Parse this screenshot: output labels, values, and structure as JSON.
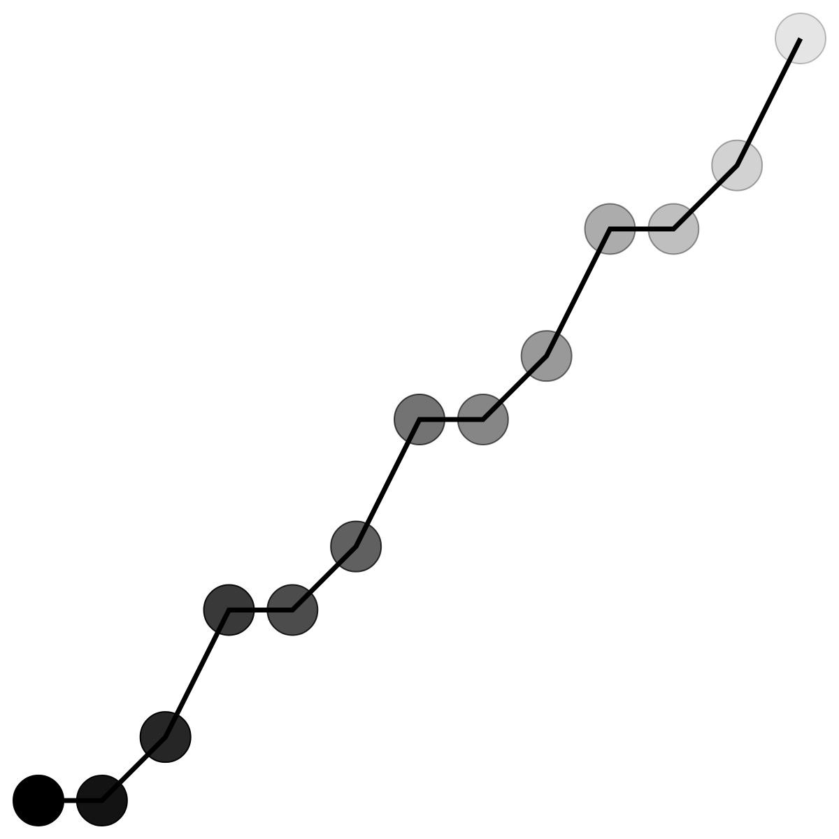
{
  "chart_data": {
    "type": "line",
    "title": "",
    "xlabel": "",
    "ylabel": "",
    "grid": false,
    "legend": "none",
    "line_color": "#000000",
    "marker_fill": "#000000",
    "marker_opacity_range": [
      1.0,
      0.1
    ],
    "xlim": [
      0,
      12
    ],
    "ylim": [
      0,
      12
    ],
    "series": [
      {
        "x": [
          0,
          1,
          2,
          3,
          4,
          5,
          6,
          7,
          8,
          9,
          10,
          11,
          12
        ],
        "y": [
          0,
          0,
          1,
          3,
          3,
          4,
          6,
          6,
          7,
          9,
          9,
          10,
          12
        ]
      }
    ]
  }
}
